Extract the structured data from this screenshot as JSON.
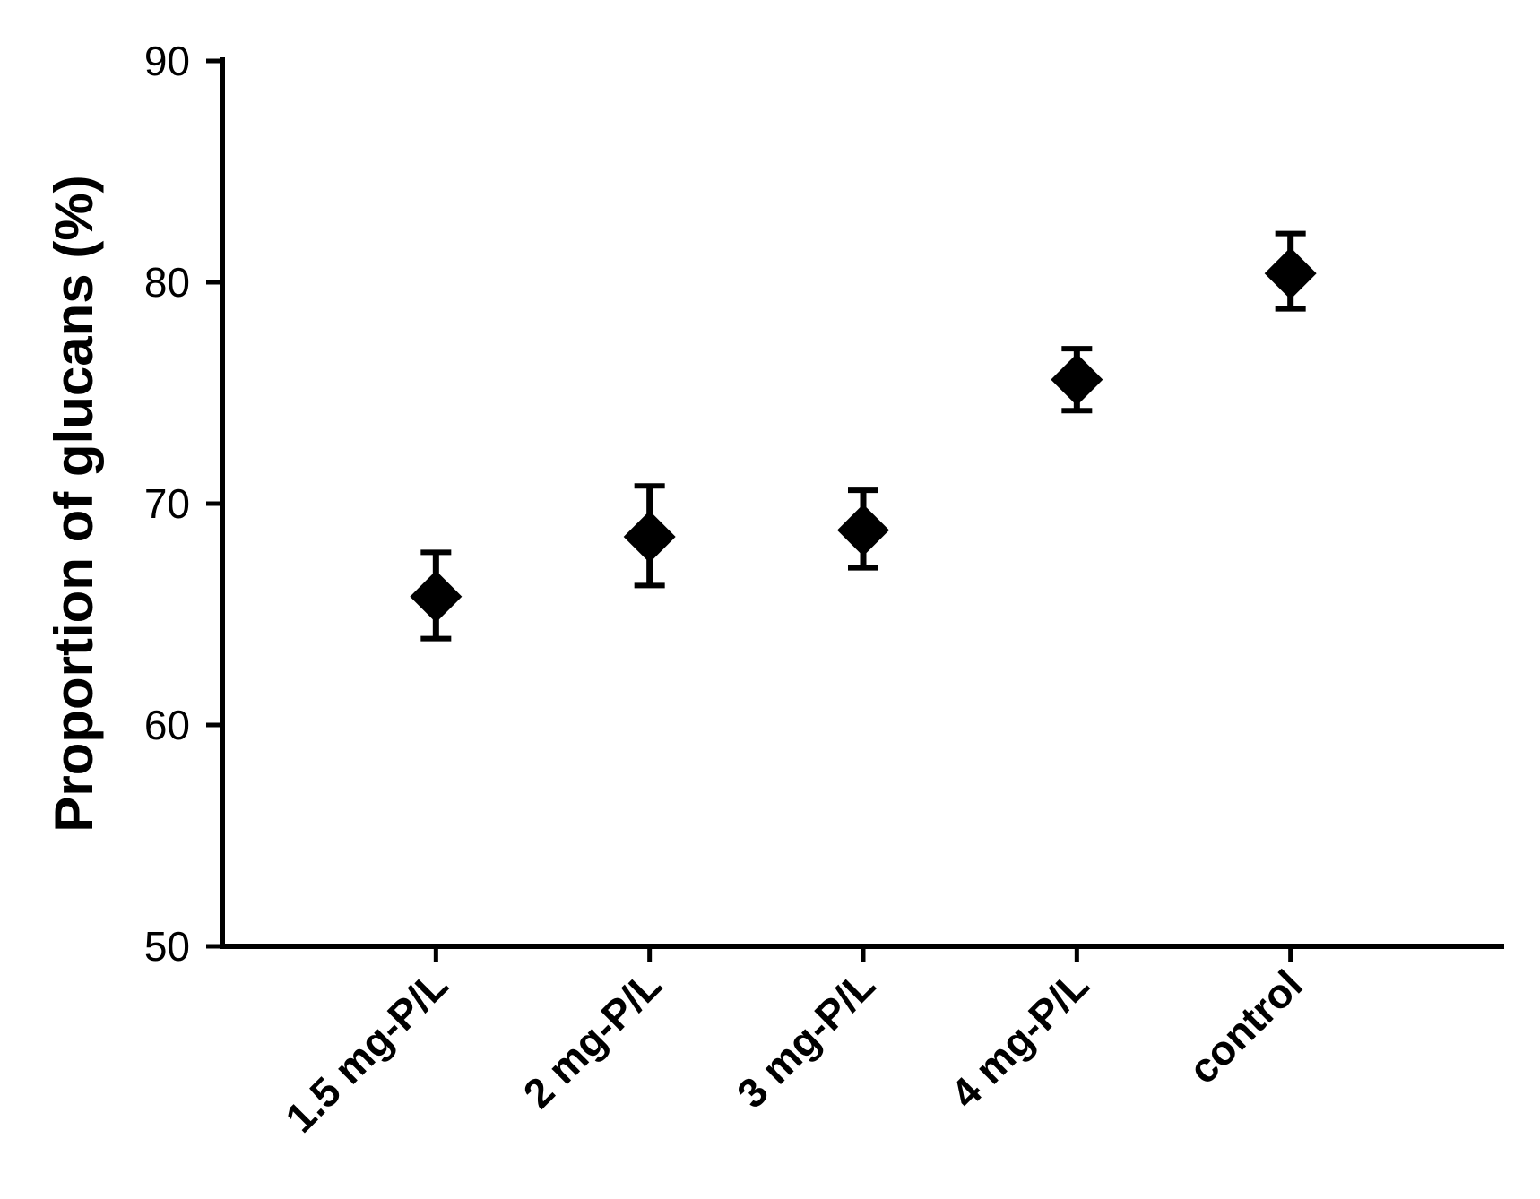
{
  "figure": {
    "background": "#ffffff",
    "ink_color": "#000000"
  },
  "chart_data": {
    "type": "scatter",
    "marker": "diamond",
    "title": "",
    "xlabel": "",
    "ylabel": "Proportion of glucans (%)",
    "categories": [
      "1.5 mg-P/L",
      "2 mg-P/L",
      "3 mg-P/L",
      "4 mg-P/L",
      "control"
    ],
    "series": [
      {
        "name": "Proportion of glucans",
        "values": [
          65.8,
          68.5,
          68.8,
          75.6,
          80.4
        ],
        "error_up": [
          2.0,
          2.3,
          1.8,
          1.4,
          1.8
        ],
        "error_down": [
          1.9,
          2.2,
          1.7,
          1.4,
          1.6
        ]
      }
    ],
    "ylim": [
      50,
      90
    ],
    "yticks": [
      90,
      80,
      70,
      60,
      50
    ],
    "grid": false,
    "legend": false,
    "x_tick_label_rotation_deg": 45
  }
}
